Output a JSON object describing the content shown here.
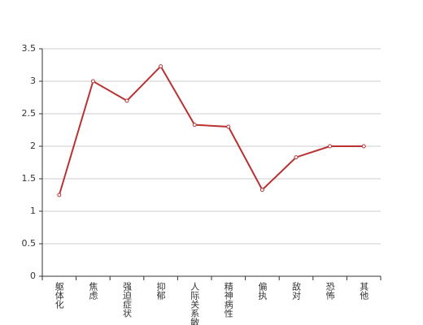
{
  "chart_data": {
    "type": "line",
    "categories": [
      "躯体化",
      "焦虑",
      "强迫症状",
      "抑郁",
      "人际关系敏感",
      "精神病性",
      "偏执",
      "敌对",
      "恐怖",
      "其他"
    ],
    "values": [
      1.25,
      3.0,
      2.7,
      3.23,
      2.33,
      2.3,
      1.33,
      1.83,
      2.0,
      2.0
    ],
    "color": "#b83232",
    "ylim": [
      0,
      3.5
    ],
    "yticks": [
      0,
      0.5,
      1,
      1.5,
      2,
      2.5,
      3,
      3.5
    ],
    "grid": true
  }
}
